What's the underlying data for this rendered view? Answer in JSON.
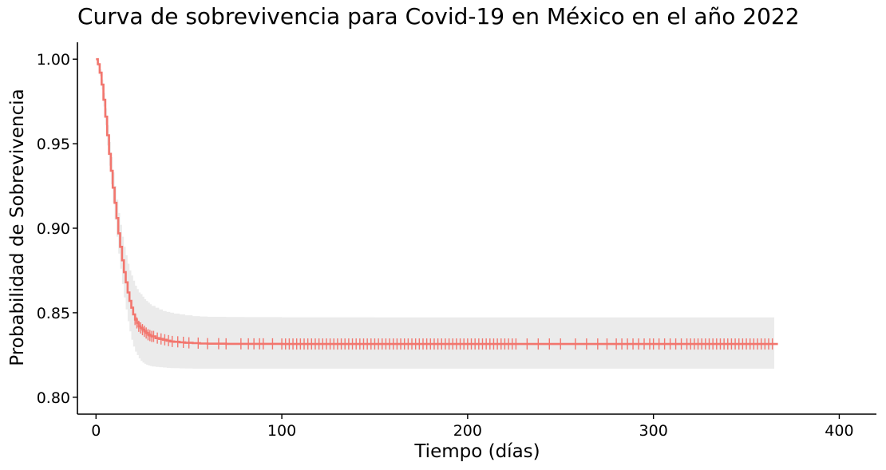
{
  "chart_data": {
    "type": "line",
    "title": "Curva de sobrevivencia para Covid-19 en México en el año 2022",
    "xlabel": "Tiempo (días)",
    "ylabel": "Probabilidad de Sobrevivencia",
    "xlim": [
      -10,
      420
    ],
    "ylim": [
      0.79,
      1.01
    ],
    "x_ticks": [
      0,
      100,
      200,
      300,
      400
    ],
    "y_ticks": [
      0.8,
      0.85,
      0.9,
      0.95,
      1.0
    ],
    "x_tick_labels": [
      "0",
      "100",
      "200",
      "300",
      "400"
    ],
    "y_tick_labels": [
      "0.80",
      "0.85",
      "0.90",
      "0.95",
      "1.00"
    ],
    "grid": false,
    "legend": "none",
    "colors": {
      "line": "#F2766E",
      "band": "#EBEBEB",
      "axis": "#000000"
    },
    "series": [
      {
        "x": [
          0,
          1,
          2,
          3,
          4,
          5,
          6,
          7,
          8,
          9,
          10,
          11,
          12,
          13,
          14,
          15,
          16,
          17,
          18,
          19,
          20,
          21,
          22,
          23,
          24,
          25,
          26,
          27,
          28,
          29,
          30,
          32,
          34,
          36,
          38,
          40,
          42,
          45,
          48,
          52,
          56,
          60,
          70,
          80,
          100,
          150,
          200,
          250,
          300,
          365
        ],
        "y": [
          1.0,
          0.997,
          0.992,
          0.985,
          0.976,
          0.966,
          0.955,
          0.944,
          0.934,
          0.924,
          0.915,
          0.906,
          0.897,
          0.889,
          0.881,
          0.874,
          0.868,
          0.862,
          0.857,
          0.853,
          0.849,
          0.846,
          0.844,
          0.842,
          0.841,
          0.84,
          0.839,
          0.838,
          0.837,
          0.8365,
          0.836,
          0.835,
          0.8345,
          0.834,
          0.8335,
          0.833,
          0.8328,
          0.8325,
          0.8322,
          0.832,
          0.8318,
          0.8317,
          0.8316,
          0.8316,
          0.8315,
          0.8315,
          0.8315,
          0.8315,
          0.8315,
          0.8315
        ],
        "lower": [
          1.0,
          0.996,
          0.99,
          0.982,
          0.972,
          0.961,
          0.949,
          0.937,
          0.926,
          0.915,
          0.905,
          0.895,
          0.885,
          0.876,
          0.867,
          0.859,
          0.852,
          0.845,
          0.839,
          0.834,
          0.83,
          0.827,
          0.825,
          0.823,
          0.8215,
          0.8205,
          0.8198,
          0.8192,
          0.8188,
          0.8185,
          0.8182,
          0.818,
          0.8178,
          0.8176,
          0.8174,
          0.8173,
          0.8172,
          0.8171,
          0.817,
          0.8169,
          0.8169,
          0.8169,
          0.8169,
          0.8169,
          0.8169,
          0.8169,
          0.8169,
          0.8169,
          0.8169,
          0.8169
        ],
        "upper": [
          1.0,
          0.998,
          0.994,
          0.988,
          0.98,
          0.971,
          0.961,
          0.951,
          0.942,
          0.933,
          0.925,
          0.917,
          0.909,
          0.902,
          0.895,
          0.889,
          0.884,
          0.879,
          0.875,
          0.872,
          0.869,
          0.866,
          0.864,
          0.862,
          0.861,
          0.8595,
          0.858,
          0.857,
          0.856,
          0.855,
          0.854,
          0.853,
          0.852,
          0.851,
          0.8505,
          0.85,
          0.8495,
          0.849,
          0.8485,
          0.848,
          0.8478,
          0.8476,
          0.8475,
          0.8474,
          0.8473,
          0.8472,
          0.8472,
          0.8472,
          0.8472,
          0.8472
        ],
        "censor_x": [
          21,
          22,
          23,
          24,
          25,
          26,
          27,
          28,
          29,
          30,
          31,
          33,
          35,
          37,
          39,
          41,
          44,
          47,
          50,
          55,
          60,
          66,
          70,
          78,
          82,
          85,
          88,
          90,
          95,
          100,
          102,
          104,
          106,
          108,
          110,
          112,
          114,
          116,
          118,
          120,
          122,
          124,
          126,
          128,
          130,
          132,
          134,
          136,
          138,
          140,
          142,
          144,
          146,
          148,
          150,
          152,
          154,
          156,
          158,
          160,
          162,
          164,
          166,
          168,
          170,
          172,
          174,
          176,
          178,
          180,
          182,
          184,
          186,
          188,
          190,
          192,
          194,
          196,
          198,
          200,
          202,
          204,
          206,
          208,
          210,
          212,
          214,
          216,
          218,
          220,
          222,
          224,
          226,
          232,
          238,
          244,
          250,
          258,
          264,
          270,
          275,
          280,
          283,
          286,
          289,
          292,
          295,
          298,
          300,
          303,
          306,
          309,
          312,
          315,
          318,
          320,
          322,
          324,
          326,
          328,
          330,
          332,
          334,
          336,
          338,
          340,
          342,
          344,
          346,
          348,
          350,
          352,
          354,
          356,
          358,
          360,
          362,
          364
        ]
      }
    ]
  }
}
